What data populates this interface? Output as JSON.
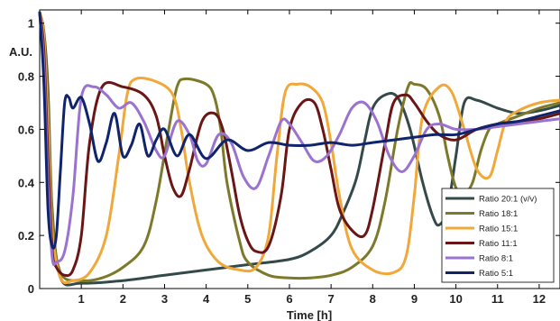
{
  "chart_data": {
    "type": "line",
    "title": "",
    "xlabel": "Time [h]",
    "ylabel": "A.U.",
    "xlim": [
      0,
      12.5
    ],
    "ylim": [
      0,
      1.05
    ],
    "xticks": [
      "1",
      "2",
      "3",
      "4",
      "5",
      "6",
      "7",
      "8",
      "9",
      "10",
      "11",
      "12"
    ],
    "yticks": [
      "0",
      "0.2",
      "0.4",
      "0.6",
      "0.8",
      "1"
    ],
    "grid": false,
    "legend_position": "bottom-right",
    "series": [
      {
        "name": "Ratio 20:1 (v/v)",
        "color": "#34494a",
        "x": [
          0,
          0.1,
          0.2,
          0.3,
          0.5,
          1.0,
          2.0,
          3.0,
          4.0,
          5.0,
          6.0,
          6.5,
          7.0,
          7.3,
          7.6,
          7.8,
          8.0,
          8.3,
          8.6,
          8.9,
          9.2,
          9.45,
          9.6,
          9.8,
          10.0,
          10.2,
          10.5,
          11.0,
          11.5,
          12.0,
          12.5
        ],
        "values": [
          1.04,
          0.97,
          0.75,
          0.3,
          0.04,
          0.02,
          0.03,
          0.05,
          0.07,
          0.09,
          0.11,
          0.14,
          0.2,
          0.29,
          0.41,
          0.55,
          0.68,
          0.73,
          0.72,
          0.6,
          0.4,
          0.27,
          0.24,
          0.3,
          0.5,
          0.7,
          0.71,
          0.68,
          0.66,
          0.67,
          0.69
        ]
      },
      {
        "name": "Ratio 18:1",
        "color": "#7c7a2a",
        "x": [
          0,
          0.1,
          0.2,
          0.3,
          0.5,
          1.0,
          1.5,
          2.0,
          2.5,
          2.8,
          3.1,
          3.3,
          3.5,
          4.0,
          4.2,
          4.35,
          4.5,
          4.8,
          5.0,
          5.5,
          6.0,
          6.5,
          7.0,
          7.5,
          8.0,
          8.3,
          8.6,
          8.85,
          9.0,
          9.3,
          9.6,
          9.8,
          10.0,
          10.2,
          10.4,
          10.6,
          10.8,
          11.0,
          11.5,
          12.0,
          12.5
        ],
        "values": [
          1.04,
          0.96,
          0.7,
          0.28,
          0.06,
          0.03,
          0.04,
          0.08,
          0.16,
          0.33,
          0.6,
          0.76,
          0.79,
          0.77,
          0.72,
          0.6,
          0.4,
          0.18,
          0.1,
          0.05,
          0.04,
          0.04,
          0.05,
          0.08,
          0.16,
          0.33,
          0.6,
          0.76,
          0.77,
          0.75,
          0.65,
          0.5,
          0.38,
          0.36,
          0.4,
          0.52,
          0.6,
          0.62,
          0.65,
          0.68,
          0.7
        ]
      },
      {
        "name": "Ratio 15:1",
        "color": "#f0a83a",
        "x": [
          0,
          0.1,
          0.2,
          0.3,
          0.5,
          0.8,
          1.2,
          1.6,
          1.9,
          2.1,
          2.3,
          2.8,
          3.2,
          3.4,
          3.6,
          3.9,
          4.3,
          4.8,
          5.2,
          5.5,
          5.7,
          5.9,
          6.2,
          6.5,
          6.8,
          7.0,
          7.2,
          7.5,
          8.0,
          8.5,
          8.8,
          9.0,
          9.2,
          9.6,
          9.9,
          10.2,
          10.5,
          10.8,
          11.0,
          11.2,
          11.5,
          12.0,
          12.5
        ],
        "values": [
          1.04,
          0.95,
          0.62,
          0.22,
          0.04,
          0.03,
          0.06,
          0.2,
          0.5,
          0.73,
          0.79,
          0.78,
          0.73,
          0.6,
          0.4,
          0.2,
          0.1,
          0.07,
          0.08,
          0.2,
          0.5,
          0.74,
          0.77,
          0.76,
          0.7,
          0.55,
          0.35,
          0.15,
          0.07,
          0.06,
          0.12,
          0.35,
          0.65,
          0.76,
          0.74,
          0.6,
          0.45,
          0.42,
          0.52,
          0.63,
          0.67,
          0.7,
          0.71
        ]
      },
      {
        "name": "Ratio 11:1",
        "color": "#6a1616",
        "x": [
          0,
          0.1,
          0.2,
          0.3,
          0.4,
          0.6,
          0.8,
          1.0,
          1.2,
          1.5,
          2.0,
          2.5,
          2.8,
          3.0,
          3.2,
          3.4,
          3.6,
          3.9,
          4.2,
          4.4,
          4.6,
          4.8,
          5.0,
          5.2,
          5.5,
          5.8,
          6.0,
          6.3,
          6.6,
          6.8,
          7.0,
          7.2,
          7.5,
          7.8,
          8.0,
          8.3,
          8.5,
          8.8,
          9.0,
          9.3,
          9.6,
          10.0,
          10.5,
          11.0,
          11.5,
          12.0,
          12.5
        ],
        "values": [
          1.04,
          0.9,
          0.5,
          0.15,
          0.08,
          0.05,
          0.07,
          0.2,
          0.55,
          0.76,
          0.76,
          0.73,
          0.65,
          0.5,
          0.38,
          0.35,
          0.45,
          0.63,
          0.66,
          0.6,
          0.45,
          0.28,
          0.18,
          0.14,
          0.16,
          0.35,
          0.6,
          0.7,
          0.7,
          0.6,
          0.45,
          0.3,
          0.22,
          0.2,
          0.3,
          0.55,
          0.7,
          0.73,
          0.7,
          0.63,
          0.58,
          0.56,
          0.6,
          0.62,
          0.63,
          0.64,
          0.66
        ]
      },
      {
        "name": "Ratio 8:1",
        "color": "#9a72d0",
        "x": [
          0,
          0.1,
          0.2,
          0.3,
          0.4,
          0.6,
          0.8,
          1.0,
          1.3,
          1.6,
          1.9,
          2.2,
          2.5,
          2.8,
          3.0,
          3.3,
          3.6,
          3.8,
          4.0,
          4.3,
          4.6,
          4.9,
          5.2,
          5.5,
          5.8,
          6.0,
          6.3,
          6.6,
          6.9,
          7.2,
          7.5,
          7.8,
          8.1,
          8.4,
          8.7,
          9.0,
          9.3,
          9.6,
          10.0,
          10.5,
          11.0,
          11.5,
          12.0,
          12.5
        ],
        "values": [
          1.04,
          0.85,
          0.4,
          0.12,
          0.1,
          0.14,
          0.35,
          0.72,
          0.76,
          0.73,
          0.68,
          0.7,
          0.63,
          0.52,
          0.5,
          0.63,
          0.58,
          0.48,
          0.47,
          0.58,
          0.55,
          0.42,
          0.38,
          0.5,
          0.63,
          0.62,
          0.55,
          0.48,
          0.5,
          0.58,
          0.68,
          0.7,
          0.63,
          0.5,
          0.44,
          0.5,
          0.6,
          0.62,
          0.6,
          0.6,
          0.61,
          0.62,
          0.63,
          0.64
        ]
      },
      {
        "name": "Ratio 5:1",
        "color": "#10246e",
        "x": [
          0,
          0.1,
          0.2,
          0.3,
          0.4,
          0.5,
          0.6,
          0.7,
          0.8,
          1.0,
          1.2,
          1.4,
          1.6,
          1.8,
          2.0,
          2.2,
          2.4,
          2.6,
          2.8,
          3.0,
          3.3,
          3.6,
          4.0,
          4.5,
          5.0,
          5.5,
          6.0,
          6.5,
          7.0,
          7.5,
          8.0,
          8.5,
          9.0,
          9.5,
          10.0,
          10.5,
          11.0,
          11.5,
          12.0,
          12.5
        ],
        "values": [
          1.04,
          0.78,
          0.3,
          0.16,
          0.2,
          0.45,
          0.7,
          0.72,
          0.68,
          0.72,
          0.62,
          0.48,
          0.55,
          0.66,
          0.5,
          0.54,
          0.62,
          0.5,
          0.56,
          0.6,
          0.5,
          0.58,
          0.49,
          0.56,
          0.52,
          0.55,
          0.54,
          0.54,
          0.55,
          0.54,
          0.55,
          0.56,
          0.57,
          0.58,
          0.58,
          0.6,
          0.62,
          0.63,
          0.65,
          0.67
        ]
      }
    ]
  }
}
